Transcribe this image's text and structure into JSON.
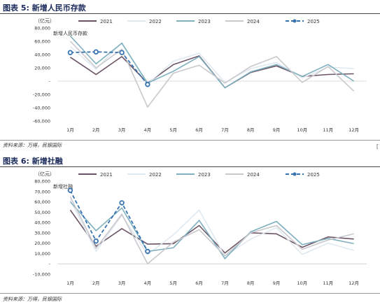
{
  "chart_data": [
    {
      "type": "line",
      "figure_label": "图表 5:",
      "title": "新增人民币存款",
      "unit": "（亿元）",
      "categories": [
        "1月",
        "2月",
        "3月",
        "4月",
        "5月",
        "6月",
        "7月",
        "8月",
        "9月",
        "10月",
        "11月",
        "12月"
      ],
      "ylim": [
        -60000,
        80000
      ],
      "yticks": [
        -60000,
        -40000,
        -20000,
        0,
        20000,
        40000,
        60000,
        80000
      ],
      "ytick_labels": [
        "-60,000",
        "-40,000",
        "-20,000",
        "-",
        "20,000",
        "40,000",
        "60,000",
        "80,000"
      ],
      "series": [
        {
          "name": "2021",
          "color": "#6b5466",
          "dashed": false,
          "markers": false,
          "values": [
            36000,
            10000,
            37000,
            -3000,
            25000,
            38000,
            -10000,
            13000,
            23000,
            7000,
            10000,
            11000
          ]
        },
        {
          "name": "2022",
          "color": "#dfe9ef",
          "dashed": false,
          "markers": false,
          "values": [
            52000,
            18000,
            58000,
            -4000,
            30000,
            42000,
            -2000,
            19000,
            28000,
            5000,
            21000,
            19000
          ]
        },
        {
          "name": "2023",
          "color": "#7fb0bf",
          "dashed": false,
          "markers": false,
          "values": [
            68000,
            26000,
            57000,
            -3000,
            15000,
            37000,
            -10000,
            14000,
            25000,
            7000,
            25000,
            0
          ]
        },
        {
          "name": "2024",
          "color": "#c9c9cd",
          "dashed": false,
          "markers": false,
          "values": [
            60000,
            20000,
            48000,
            -39000,
            12000,
            24000,
            -3000,
            22000,
            37000,
            -2000,
            22000,
            -15000
          ]
        },
        {
          "name": "2025",
          "color": "#3572b0",
          "dashed": true,
          "markers": true,
          "values": [
            43000,
            44000,
            43000,
            -5000,
            null,
            null,
            null,
            null,
            null,
            null,
            null,
            null
          ]
        }
      ],
      "source": "资料来源：万得，民银国际"
    },
    {
      "type": "line",
      "figure_label": "图表 6:",
      "title": "新增社融",
      "unit": "（亿元）",
      "categories": [
        "1月",
        "2月",
        "3月",
        "4月",
        "5月",
        "6月",
        "7月",
        "8月",
        "9月",
        "10月",
        "11月",
        "12月"
      ],
      "ylim": [
        -10000,
        80000
      ],
      "yticks": [
        -10000,
        0,
        10000,
        20000,
        30000,
        40000,
        50000,
        60000,
        70000,
        80000
      ],
      "ytick_labels": [
        "-10,000",
        "-",
        "10,000",
        "20,000",
        "30,000",
        "40,000",
        "50,000",
        "60,000",
        "70,000",
        "80,000"
      ],
      "series": [
        {
          "name": "2021",
          "color": "#6b5466",
          "dashed": false,
          "markers": false,
          "values": [
            52000,
            17000,
            34000,
            19000,
            19500,
            37000,
            10500,
            30000,
            29000,
            16000,
            26000,
            24000
          ]
        },
        {
          "name": "2022",
          "color": "#dfe9ef",
          "dashed": false,
          "markers": false,
          "values": [
            62000,
            12000,
            47000,
            9000,
            28000,
            52000,
            7500,
            24000,
            35000,
            9000,
            20000,
            13000
          ]
        },
        {
          "name": "2023",
          "color": "#7fb0bf",
          "dashed": false,
          "markers": false,
          "values": [
            60000,
            32000,
            54000,
            12000,
            15500,
            42000,
            5000,
            31000,
            41000,
            18500,
            24500,
            19500
          ]
        },
        {
          "name": "2024",
          "color": "#c9c9cd",
          "dashed": false,
          "markers": false,
          "values": [
            65000,
            15000,
            48000,
            0,
            21000,
            33000,
            7700,
            30000,
            37000,
            14000,
            23000,
            29000
          ]
        },
        {
          "name": "2025",
          "color": "#3572b0",
          "dashed": true,
          "markers": true,
          "values": [
            71000,
            22000,
            59000,
            12000,
            null,
            null,
            null,
            null,
            null,
            null,
            null,
            null
          ]
        }
      ],
      "source": "资料来源：万得，民银国际"
    }
  ],
  "side_mark": "["
}
